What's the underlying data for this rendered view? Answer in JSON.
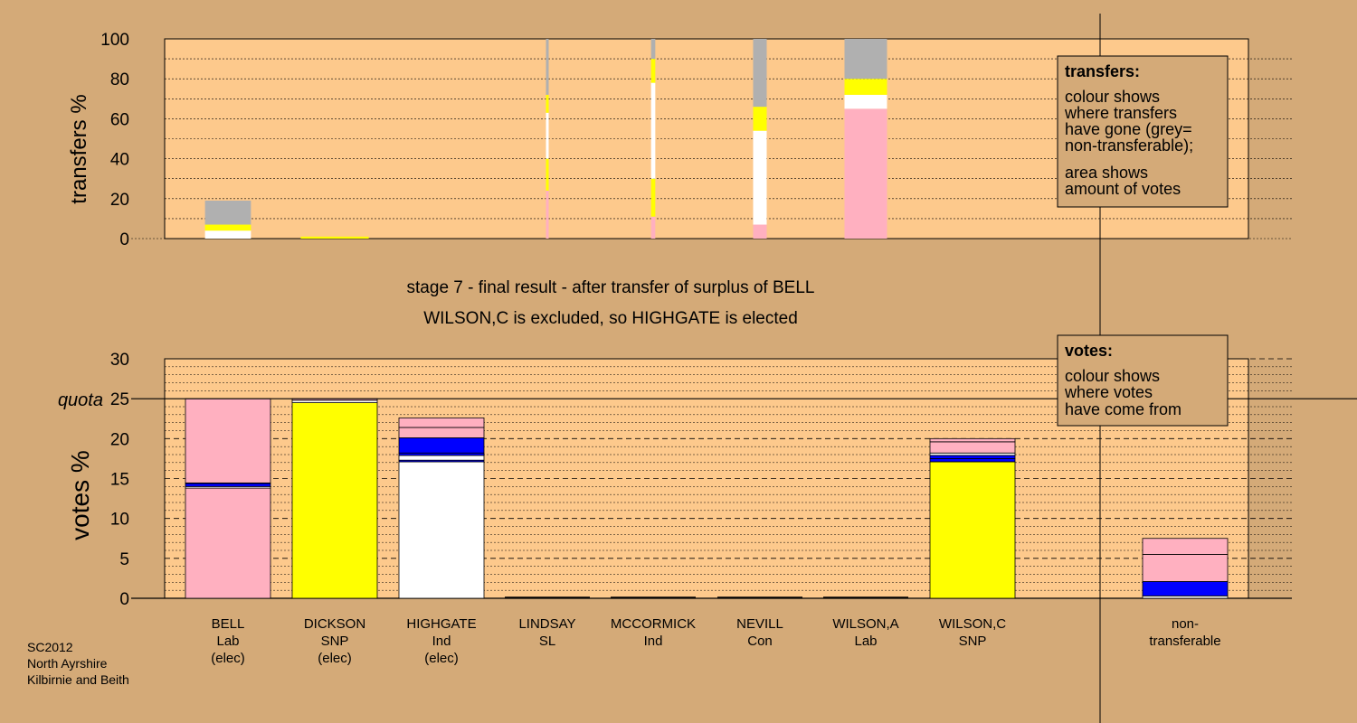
{
  "colors": {
    "background": "#d4aa78",
    "panel": "#fdc98c",
    "Lab": "#ffb0c0",
    "SNP": "#ffff00",
    "Ind": "#ffffff",
    "Con": "#0000ff",
    "SL": "#ff0000",
    "non_transferable": "#b0b0b0"
  },
  "title_lines": [
    "stage 7 - final result - after transfer of surplus of BELL",
    "WILSON,C is excluded, so HIGHGATE is elected"
  ],
  "footer": [
    "SC2012",
    "North Ayrshire",
    "Kilbirnie and Beith"
  ],
  "legends": {
    "transfers": {
      "heading": "transfers:",
      "para1": [
        "colour shows",
        "where transfers",
        "have gone (grey=",
        "non-transferable);"
      ],
      "para2": [
        "area shows",
        "amount of votes"
      ]
    },
    "votes": {
      "heading": "votes:",
      "para1": [
        "colour shows",
        "where votes",
        "have come from"
      ]
    }
  },
  "chart_data": [
    {
      "id": "transfers",
      "type": "bar",
      "ylabel": "transfers %",
      "ylim": [
        0,
        100
      ],
      "yticks": [
        0,
        20,
        40,
        60,
        80,
        100
      ],
      "columns": [
        {
          "label": "BELL",
          "width_share": 0.54,
          "segments": [
            {
              "c": "Ind",
              "v": 4
            },
            {
              "c": "SNP",
              "v": 3
            },
            {
              "c": "non_transferable",
              "v": 12
            }
          ]
        },
        {
          "label": "DICKSON",
          "width_share": 0.8,
          "segments": [
            {
              "c": "SNP",
              "v": 1
            }
          ]
        },
        {
          "label": "LINDSAY",
          "width_share": 0.03,
          "segments": [
            {
              "c": "Lab",
              "v": 24
            },
            {
              "c": "SNP",
              "v": 16
            },
            {
              "c": "Ind",
              "v": 23
            },
            {
              "c": "SNP",
              "v": 9
            },
            {
              "c": "non_transferable",
              "v": 28
            }
          ]
        },
        {
          "label": "MCCORMICK",
          "width_share": 0.05,
          "segments": [
            {
              "c": "Lab",
              "v": 11
            },
            {
              "c": "SNP",
              "v": 19
            },
            {
              "c": "Ind",
              "v": 48
            },
            {
              "c": "SNP",
              "v": 12
            },
            {
              "c": "non_transferable",
              "v": 10
            }
          ]
        },
        {
          "label": "NEVILL",
          "width_share": 0.16,
          "segments": [
            {
              "c": "Lab",
              "v": 7
            },
            {
              "c": "Ind",
              "v": 47
            },
            {
              "c": "SNP",
              "v": 12
            },
            {
              "c": "non_transferable",
              "v": 34
            }
          ]
        },
        {
          "label": "WILSON,A",
          "width_share": 0.5,
          "segments": [
            {
              "c": "Lab",
              "v": 65
            },
            {
              "c": "Ind",
              "v": 7
            },
            {
              "c": "SNP",
              "v": 8
            },
            {
              "c": "non_transferable",
              "v": 20
            }
          ]
        }
      ]
    },
    {
      "id": "votes",
      "type": "bar",
      "ylabel": "votes %",
      "ylim": [
        0,
        30
      ],
      "yticks": [
        0,
        5,
        10,
        15,
        20,
        25,
        30
      ],
      "quota": 25,
      "quota_label": "quota",
      "candidates": [
        {
          "name": "BELL",
          "party": "Lab",
          "status": "(elec)",
          "segments": [
            {
              "c": "Lab",
              "v": 13.8
            },
            {
              "c": "Ind",
              "v": 0.2
            },
            {
              "c": "Con",
              "v": 0.4
            },
            {
              "c": "SL",
              "v": 0.05
            },
            {
              "c": "Lab",
              "v": 10.55
            }
          ]
        },
        {
          "name": "DICKSON",
          "party": "SNP",
          "status": "(elec)",
          "segments": [
            {
              "c": "SNP",
              "v": 24.5
            },
            {
              "c": "Ind",
              "v": 0.3
            },
            {
              "c": "Lab",
              "v": 0.2
            }
          ]
        },
        {
          "name": "HIGHGATE",
          "party": "Ind",
          "status": "(elec)",
          "segments": [
            {
              "c": "Ind",
              "v": 17.1
            },
            {
              "c": "Con",
              "v": 0.2
            },
            {
              "c": "Ind",
              "v": 0.6
            },
            {
              "c": "Con",
              "v": 0.3
            },
            {
              "c": "Con",
              "v": 1.9
            },
            {
              "c": "Lab",
              "v": 1.3
            },
            {
              "c": "Lab",
              "v": 1.2
            }
          ]
        },
        {
          "name": "LINDSAY",
          "party": "SL",
          "status": "",
          "segments": []
        },
        {
          "name": "MCCORMICK",
          "party": "Ind",
          "status": "",
          "segments": []
        },
        {
          "name": "NEVILL",
          "party": "Con",
          "status": "",
          "segments": []
        },
        {
          "name": "WILSON,A",
          "party": "Lab",
          "status": "",
          "segments": []
        },
        {
          "name": "WILSON,C",
          "party": "SNP",
          "status": "",
          "segments": [
            {
              "c": "SNP",
              "v": 17.1
            },
            {
              "c": "Con",
              "v": 0.4
            },
            {
              "c": "Con",
              "v": 0.4
            },
            {
              "c": "Ind",
              "v": 0.3
            },
            {
              "c": "Lab",
              "v": 1.4
            },
            {
              "c": "Lab",
              "v": 0.4
            }
          ]
        }
      ],
      "non_transferable": {
        "label": [
          "non-",
          "transferable"
        ],
        "segments": [
          {
            "c": "Ind",
            "v": 0.3
          },
          {
            "c": "Con",
            "v": 1.8
          },
          {
            "c": "Lab",
            "v": 3.4
          },
          {
            "c": "Lab",
            "v": 2.0
          }
        ]
      }
    }
  ]
}
